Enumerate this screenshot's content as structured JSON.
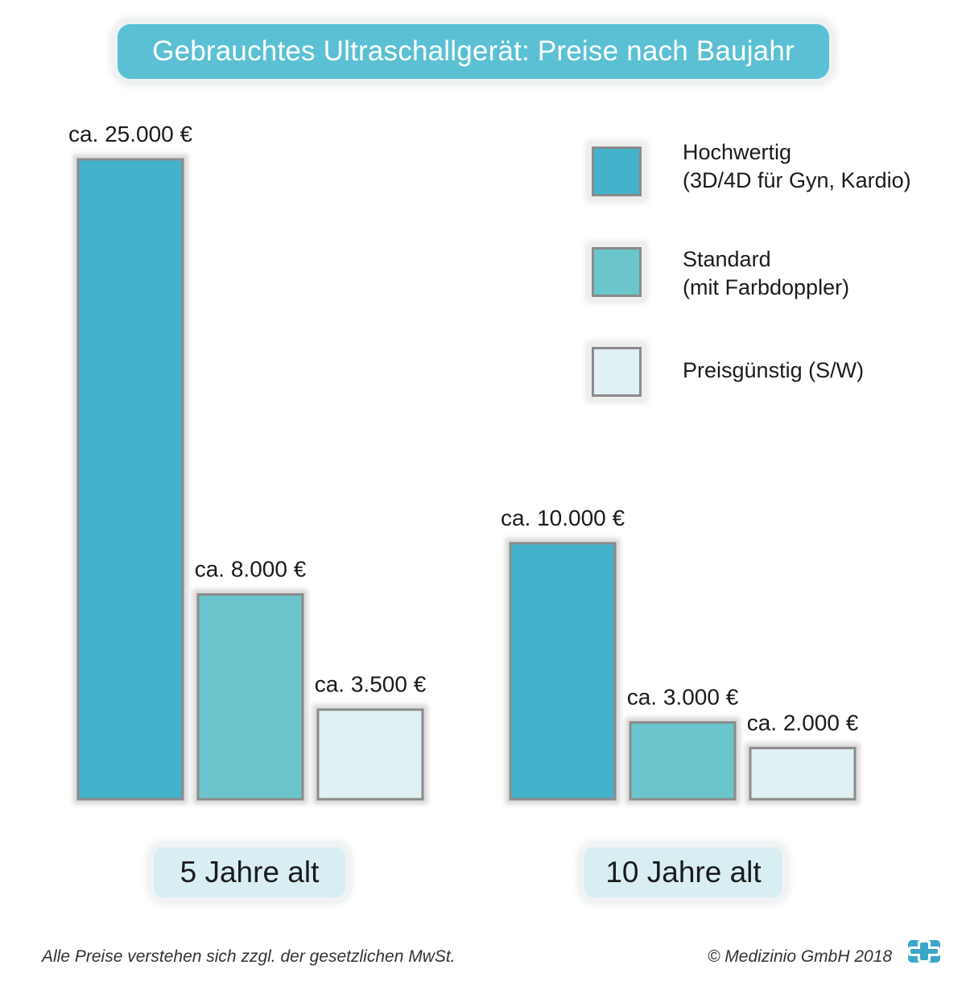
{
  "chart_data": {
    "type": "bar",
    "title": "Gebrauchtes Ultraschallgerät: Preise nach Baujahr",
    "categories": [
      "5 Jahre alt",
      "10 Jahre alt"
    ],
    "series": [
      {
        "name": "Hochwertig (3D/4D für Gyn, Kardio)",
        "values": [
          25000,
          10000
        ],
        "labels": [
          "ca. 25.000 €",
          "ca. 10.000 €"
        ],
        "color": "#43b3cb"
      },
      {
        "name": "Standard (mit Farbdoppler)",
        "values": [
          8000,
          3000
        ],
        "labels": [
          "ca. 8.000 €",
          "ca. 3.000 €"
        ],
        "color": "#6bc6cc"
      },
      {
        "name": "Preisgünstig (S/W)",
        "values": [
          3500,
          2000
        ],
        "labels": [
          "ca. 3.500 €",
          "ca. 2.000 €"
        ],
        "color": "#e0f1f3"
      }
    ],
    "ylim": [
      0,
      25000
    ],
    "legend": "top-right",
    "grid": false
  },
  "legend": {
    "items": [
      {
        "line1": "Hochwertig",
        "line2": "(3D/4D für Gyn, Kardio)",
        "color": "#43b3cb"
      },
      {
        "line1": "Standard",
        "line2": "(mit Farbdoppler)",
        "color": "#6bc6cc"
      },
      {
        "line1": "Preisgünstig (S/W)",
        "line2": "",
        "color": "#e0f1f3"
      }
    ]
  },
  "footer": {
    "note": "Alle Preise verstehen sich zzgl. der gesetzlichen MwSt.",
    "copyright": "© Medizinio GmbH 2018"
  },
  "colors": {
    "title_background": "#5bc0d4",
    "group_label_background": "#d8eef3",
    "logo": "#3aa6c9"
  },
  "logo": {
    "icon": "medizinio-cross-logo-icon"
  }
}
